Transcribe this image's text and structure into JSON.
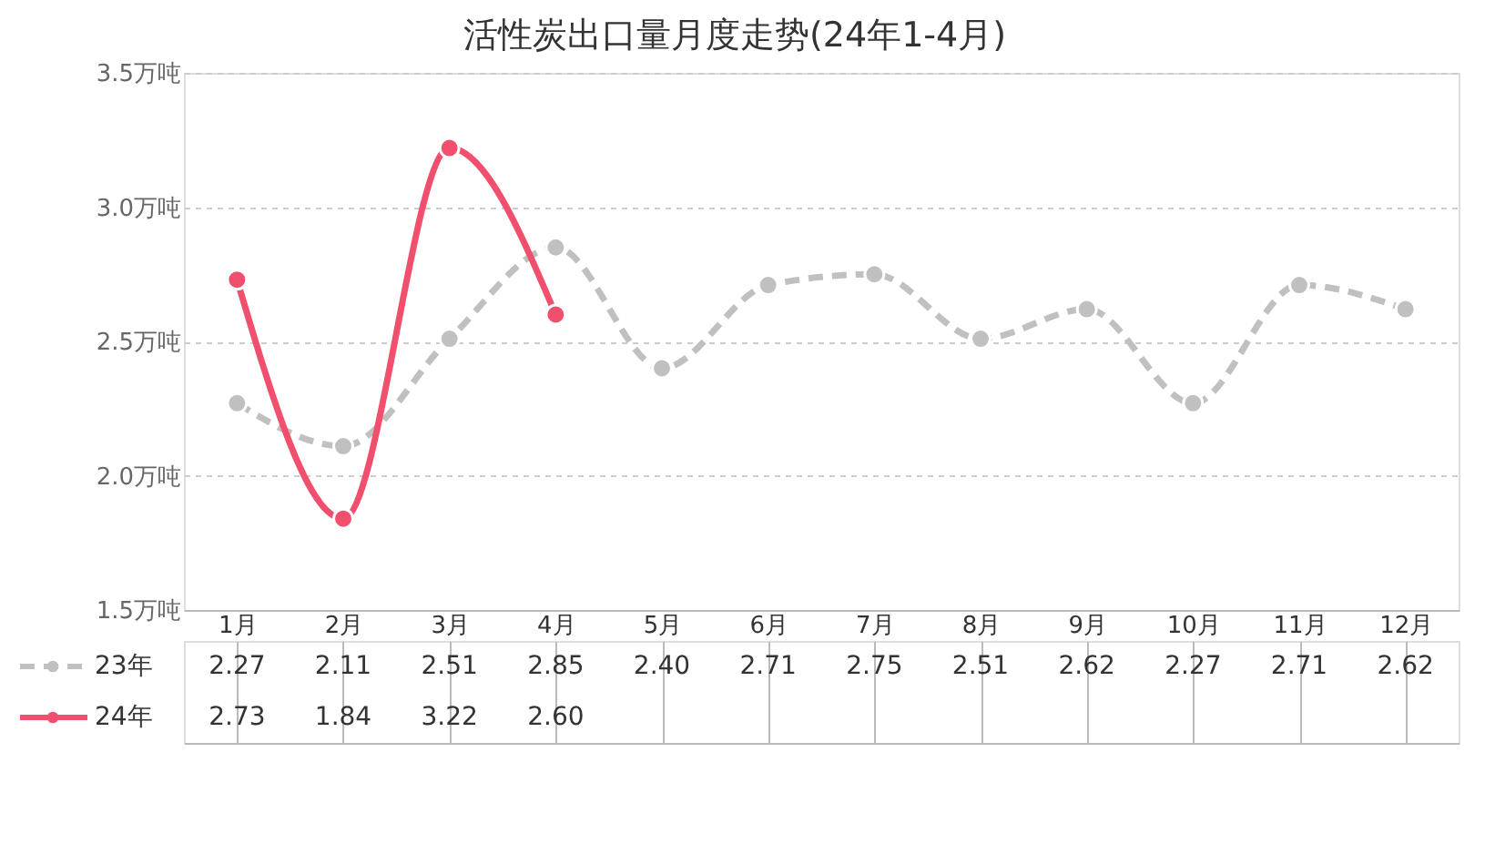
{
  "chart_data": {
    "type": "line",
    "title": "活性炭出口量月度走势(24年1-4月)",
    "categories": [
      "1月",
      "2月",
      "3月",
      "4月",
      "5月",
      "6月",
      "7月",
      "8月",
      "9月",
      "10月",
      "11月",
      "12月"
    ],
    "series": [
      {
        "name": "23年",
        "color": "#c0c0c0",
        "line_style": "dashed",
        "values": [
          2.27,
          2.11,
          2.51,
          2.85,
          2.4,
          2.71,
          2.75,
          2.51,
          2.62,
          2.27,
          2.71,
          2.62
        ],
        "value_labels": [
          "2.27",
          "2.11",
          "2.51",
          "2.85",
          "2.40",
          "2.71",
          "2.75",
          "2.51",
          "2.62",
          "2.27",
          "2.71",
          "2.62"
        ]
      },
      {
        "name": "24年",
        "color": "#f0506e",
        "line_style": "solid",
        "values": [
          2.73,
          1.84,
          3.22,
          2.6,
          null,
          null,
          null,
          null,
          null,
          null,
          null,
          null
        ],
        "value_labels": [
          "2.73",
          "1.84",
          "3.22",
          "2.60",
          null,
          null,
          null,
          null,
          null,
          null,
          null,
          null
        ]
      }
    ],
    "ylim": [
      1.5,
      3.5
    ],
    "yticks": [
      {
        "value": 1.5,
        "label": "1.5万吨"
      },
      {
        "value": 2.0,
        "label": "2.0万吨"
      },
      {
        "value": 2.5,
        "label": "2.5万吨"
      },
      {
        "value": 3.0,
        "label": "3.0万吨"
      },
      {
        "value": 3.5,
        "label": "3.5万吨"
      }
    ],
    "grid": "y",
    "marker": "circle",
    "legend": "bottom"
  }
}
